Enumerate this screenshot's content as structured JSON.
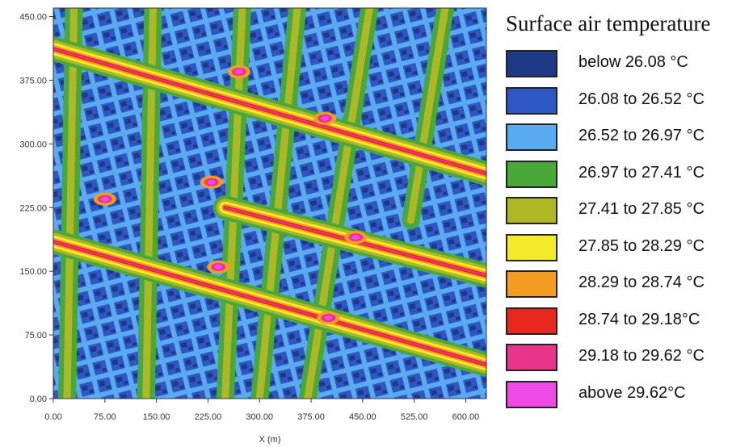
{
  "chart_data": {
    "type": "heatmap",
    "title": "Surface air temperature",
    "xlabel": "X (m)",
    "ylabel": "",
    "xlim": [
      0,
      630
    ],
    "ylim": [
      0,
      460
    ],
    "x_ticks": [
      "0.00",
      "75.00",
      "150.00",
      "225.00",
      "300.00",
      "375.00",
      "450.00",
      "525.00",
      "600.00"
    ],
    "y_ticks": [
      "0.00",
      "75.00",
      "150.00",
      "225.00",
      "300.00",
      "375.00",
      "450.00"
    ],
    "x_tick_values": [
      0,
      75,
      150,
      225,
      300,
      375,
      450,
      525,
      600
    ],
    "y_tick_values": [
      0,
      75,
      150,
      225,
      300,
      375,
      450
    ],
    "legend": [
      {
        "label": "below 26.08 °C",
        "color": "#1e3a86"
      },
      {
        "label": "26.08 to 26.52 °C",
        "color": "#2f57c4"
      },
      {
        "label": "26.52 to 26.97 °C",
        "color": "#5aaaf0"
      },
      {
        "label": "26.97 to 27.41 °C",
        "color": "#4aa83a"
      },
      {
        "label": "27.41 to 27.85 °C",
        "color": "#aeb826"
      },
      {
        "label": "27.85 to 28.29 °C",
        "color": "#f3ea2a"
      },
      {
        "label": "28.29 to 28.74 °C",
        "color": "#f59c22"
      },
      {
        "label": "28.74 to 29.18°C",
        "color": "#e8281e"
      },
      {
        "label": "29.18 to 29.62 °C",
        "color": "#e8358a"
      },
      {
        "label": "above 29.62°C",
        "color": "#ee4ae6"
      }
    ],
    "features": {
      "hot_streets": [
        {
          "from": [
            0,
            412
          ],
          "to": [
            630,
            265
          ]
        },
        {
          "from": [
            0,
            185
          ],
          "to": [
            630,
            40
          ]
        },
        {
          "from": [
            250,
            225
          ],
          "to": [
            630,
            145
          ]
        }
      ],
      "green_corridors": [
        {
          "from": [
            30,
            460
          ],
          "to": [
            20,
            0
          ]
        },
        {
          "from": [
            145,
            460
          ],
          "to": [
            135,
            0
          ]
        },
        {
          "from": [
            275,
            460
          ],
          "to": [
            250,
            0
          ]
        },
        {
          "from": [
            355,
            460
          ],
          "to": [
            300,
            0
          ]
        },
        {
          "from": [
            460,
            460
          ],
          "to": [
            370,
            0
          ]
        },
        {
          "from": [
            570,
            460
          ],
          "to": [
            520,
            210
          ]
        }
      ],
      "hotspots": [
        {
          "x": 75,
          "y": 235
        },
        {
          "x": 230,
          "y": 255
        },
        {
          "x": 270,
          "y": 385
        },
        {
          "x": 240,
          "y": 155
        },
        {
          "x": 400,
          "y": 95
        },
        {
          "x": 440,
          "y": 190
        },
        {
          "x": 395,
          "y": 330
        }
      ]
    }
  }
}
